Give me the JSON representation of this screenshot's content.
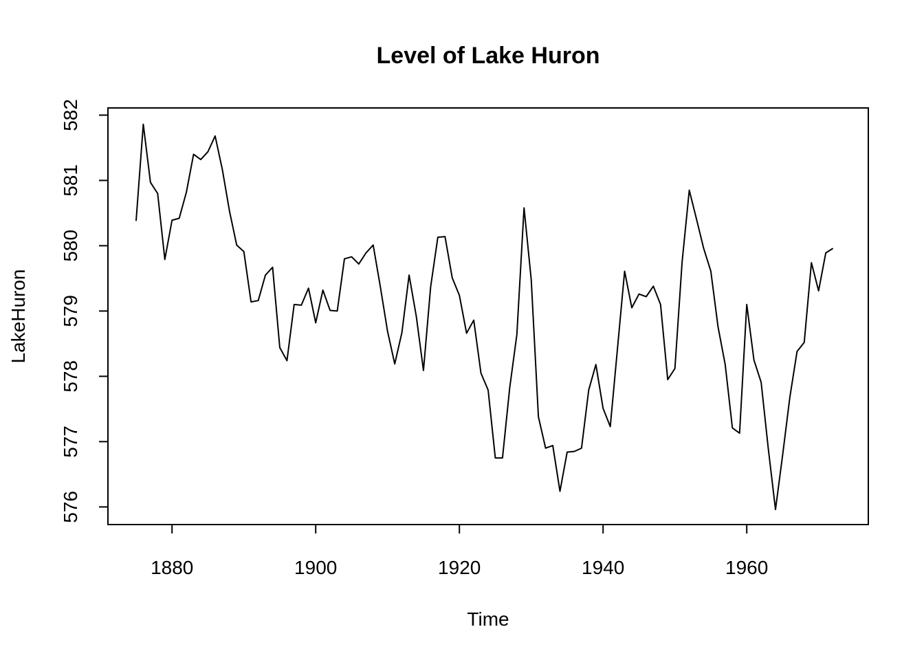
{
  "chart_data": {
    "type": "line",
    "title": "Level of Lake Huron",
    "xlabel": "Time",
    "ylabel": "LakeHuron",
    "xlim": [
      1871.08,
      1976.92
    ],
    "ylim": [
      575.73,
      582.11
    ],
    "x_ticks": [
      1880,
      1900,
      1920,
      1940,
      1960
    ],
    "y_ticks": [
      576,
      577,
      578,
      579,
      580,
      581,
      582
    ],
    "x_tick_labels": [
      "1880",
      "1900",
      "1920",
      "1940",
      "1960"
    ],
    "y_tick_labels": [
      "576",
      "577",
      "578",
      "579",
      "580",
      "581",
      "582"
    ],
    "grid": false,
    "series": [
      {
        "x": [
          1875,
          1876,
          1877,
          1878,
          1879,
          1880,
          1881,
          1882,
          1883,
          1884,
          1885,
          1886,
          1887,
          1888,
          1889,
          1890,
          1891,
          1892,
          1893,
          1894,
          1895,
          1896,
          1897,
          1898,
          1899,
          1900,
          1901,
          1902,
          1903,
          1904,
          1905,
          1906,
          1907,
          1908,
          1909,
          1910,
          1911,
          1912,
          1913,
          1914,
          1915,
          1916,
          1917,
          1918,
          1919,
          1920,
          1921,
          1922,
          1923,
          1924,
          1925,
          1926,
          1927,
          1928,
          1929,
          1930,
          1931,
          1932,
          1933,
          1934,
          1935,
          1936,
          1937,
          1938,
          1939,
          1940,
          1941,
          1942,
          1943,
          1944,
          1945,
          1946,
          1947,
          1948,
          1949,
          1950,
          1951,
          1952,
          1953,
          1954,
          1955,
          1956,
          1957,
          1958,
          1959,
          1960,
          1961,
          1962,
          1963,
          1964,
          1965,
          1966,
          1967,
          1968,
          1969,
          1970,
          1971,
          1972
        ],
        "values": [
          580.38,
          581.86,
          580.97,
          580.8,
          579.79,
          580.39,
          580.42,
          580.82,
          581.4,
          581.32,
          581.44,
          581.68,
          581.17,
          580.53,
          580.01,
          579.91,
          579.14,
          579.16,
          579.55,
          579.67,
          578.44,
          578.24,
          579.1,
          579.09,
          579.35,
          578.82,
          579.32,
          579.01,
          579.0,
          579.8,
          579.83,
          579.72,
          579.89,
          580.01,
          579.37,
          578.69,
          578.19,
          578.67,
          579.55,
          578.92,
          578.09,
          579.37,
          580.13,
          580.14,
          579.51,
          579.24,
          578.66,
          578.86,
          578.05,
          577.79,
          576.75,
          576.75,
          577.82,
          578.64,
          580.58,
          579.48,
          577.38,
          576.9,
          576.94,
          576.24,
          576.84,
          576.85,
          576.9,
          577.79,
          578.18,
          577.51,
          577.23,
          578.42,
          579.61,
          579.05,
          579.26,
          579.22,
          579.38,
          579.1,
          577.95,
          578.12,
          579.75,
          580.85,
          580.41,
          579.96,
          579.61,
          578.76,
          578.18,
          577.21,
          577.13,
          579.1,
          578.25,
          577.91,
          576.89,
          575.96,
          576.8,
          577.68,
          578.38,
          578.52,
          579.74,
          579.31,
          579.89,
          579.96
        ]
      }
    ],
    "line_color": "#000000"
  }
}
